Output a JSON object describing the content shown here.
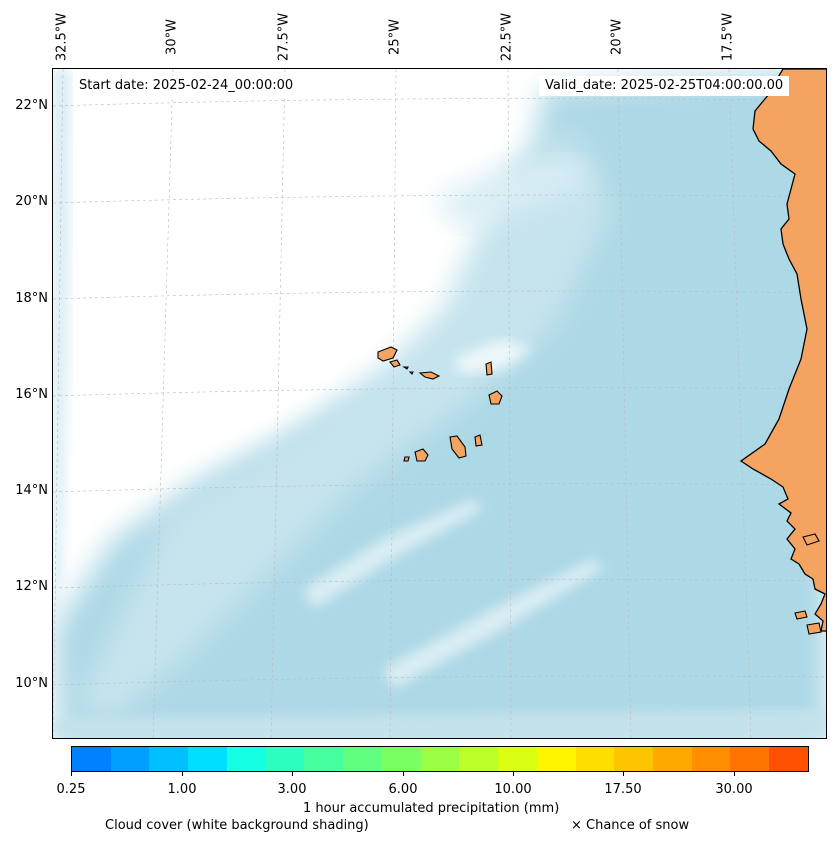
{
  "map": {
    "lon_labels": [
      "32.5°W",
      "30°W",
      "27.5°W",
      "25°W",
      "22.5°W",
      "20°W",
      "17.5°W"
    ],
    "lat_labels": [
      "22°N",
      "20°N",
      "18°N",
      "16°N",
      "14°N",
      "12°N",
      "10°N"
    ],
    "start_date": "Start date: 2025-02-24_00:00:00",
    "valid_date": "Valid_date: 2025-02-25T04:00:00.00",
    "colors": {
      "ocean_cloud": "#add8e6",
      "land": "#f4a460",
      "coast": "#000000"
    }
  },
  "colorbar": {
    "tick_labels": [
      "0.25",
      "1.00",
      "3.00",
      "6.00",
      "10.00",
      "17.50",
      "30.00"
    ],
    "colors": [
      "#0080ff",
      "#009fff",
      "#00bfff",
      "#00dfff",
      "#14ffe4",
      "#2cffbf",
      "#46ff9f",
      "#60ff80",
      "#7aff62",
      "#9aff44",
      "#baff28",
      "#daff10",
      "#fff500",
      "#ffde00",
      "#ffc400",
      "#ffa900",
      "#ff8e00",
      "#ff7300",
      "#ff4f00"
    ],
    "label": "1 hour accumulated precipitation (mm)"
  },
  "legend": {
    "cloud_cover": "Cloud cover (white background shading)",
    "snow": "× Chance of snow"
  }
}
